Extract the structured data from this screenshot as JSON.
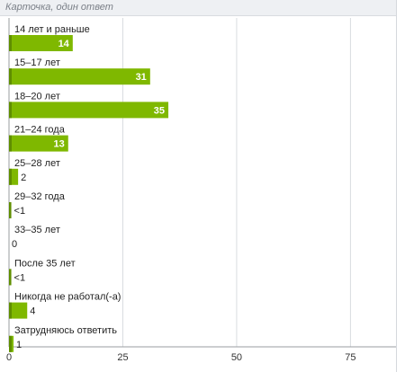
{
  "header": {
    "title": "Карточка, один ответ"
  },
  "colors": {
    "bar": "#7fb800",
    "bar_dark": "#5f8e00",
    "grid": "#d9dce0",
    "axis": "#9a9da2"
  },
  "chart_data": {
    "type": "bar",
    "orientation": "horizontal",
    "categories": [
      "14 лет и раньше",
      "15–17 лет",
      "18–20 лет",
      "21–24 года",
      "25–28 лет",
      "29–32 года",
      "33–35 лет",
      "После 35 лет",
      "Никогда не работал(-а)",
      "Затрудняюсь ответить"
    ],
    "values": [
      14,
      31,
      35,
      13,
      2,
      0.5,
      0,
      0.5,
      4,
      1
    ],
    "value_labels": [
      "14",
      "31",
      "35",
      "13",
      "2",
      "<1",
      "0",
      "<1",
      "4",
      "1"
    ],
    "xlim": [
      0,
      85
    ],
    "xticks": [
      0,
      25,
      50,
      75
    ],
    "grid": true
  }
}
